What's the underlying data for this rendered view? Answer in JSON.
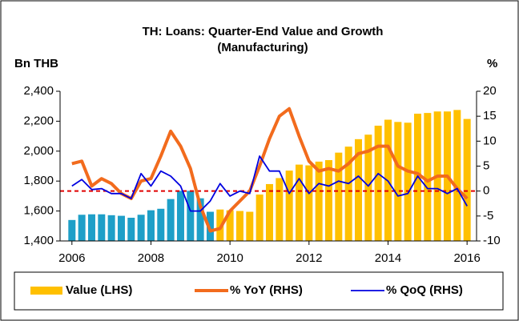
{
  "chart_data": {
    "type": "combo",
    "title": [
      "TH: Loans: Quarter-End Value and Growth",
      "(Manufacturing)"
    ],
    "y_label": "Bn THB",
    "y2_label": "%",
    "x": [
      2006,
      2006.25,
      2006.5,
      2006.75,
      2007,
      2007.25,
      2007.5,
      2007.75,
      2008,
      2008.25,
      2008.5,
      2008.75,
      2009,
      2009.25,
      2009.5,
      2009.75,
      2010,
      2010.25,
      2010.5,
      2010.75,
      2011,
      2011.25,
      2011.5,
      2011.75,
      2012,
      2012.25,
      2012.5,
      2012.75,
      2013,
      2013.25,
      2013.5,
      2013.75,
      2014,
      2014.25,
      2014.5,
      2014.75,
      2015,
      2015.25,
      2015.5,
      2015.75,
      2016
    ],
    "xlim": [
      2005.7,
      2016.24
    ],
    "xticks": [
      2006,
      2008,
      2010,
      2012,
      2014,
      2016
    ],
    "ylim": [
      1400,
      2400
    ],
    "yticks": [
      {
        "value": 1400,
        "label": "1,400"
      },
      {
        "value": 1600,
        "label": "1,600"
      },
      {
        "value": 1800,
        "label": "1,800"
      },
      {
        "value": 2000,
        "label": "2,000"
      },
      {
        "value": 2200,
        "label": "2,200"
      },
      {
        "value": 2400,
        "label": "2,400"
      }
    ],
    "y2lim": [
      -10,
      20
    ],
    "y2ticks": [
      -10,
      -5,
      0,
      5,
      10,
      15,
      20
    ],
    "reference_line": {
      "axis": "y2",
      "value": 0,
      "color": "#e00000"
    },
    "series": [
      {
        "name": "Value (LHS)",
        "type": "bar",
        "color": "#ffc000",
        "colors": [
          "#1e9fc8",
          "#1e9fc8",
          "#1e9fc8",
          "#1e9fc8",
          "#1e9fc8",
          "#1e9fc8",
          "#1e9fc8",
          "#1e9fc8",
          "#1e9fc8",
          "#1e9fc8",
          "#1e9fc8",
          "#1e9fc8",
          "#1e9fc8",
          "#1e9fc8",
          "#1e9fc8",
          "#ffc000",
          "#ffc000",
          "#ffc000",
          "#ffc000",
          "#ffc000",
          "#ffc000",
          "#ffc000",
          "#ffc000",
          "#ffc000",
          "#ffc000",
          "#ffc000",
          "#ffc000",
          "#ffc000",
          "#ffc000",
          "#ffc000",
          "#ffc000",
          "#ffc000",
          "#ffc000",
          "#ffc000",
          "#ffc000",
          "#ffc000",
          "#ffc000",
          "#ffc000",
          "#ffc000",
          "#ffc000",
          "#ffc000"
        ],
        "values": [
          1540,
          1575,
          1578,
          1578,
          1572,
          1568,
          1555,
          1575,
          1605,
          1615,
          1680,
          1735,
          1735,
          1685,
          1595,
          1610,
          1605,
          1600,
          1595,
          1710,
          1780,
          1820,
          1870,
          1910,
          1905,
          1930,
          1940,
          1990,
          2030,
          2080,
          2110,
          2170,
          2210,
          2195,
          2190,
          2250,
          2255,
          2265,
          2265,
          2275,
          2215
        ]
      },
      {
        "name": "% YoY (RHS)",
        "type": "line",
        "axis": "y2",
        "color": "#f26b1d",
        "width": 4,
        "values": [
          5.5,
          6,
          1,
          2.5,
          1.5,
          -0.5,
          -1.5,
          2,
          2.5,
          7,
          12,
          9,
          4.5,
          -3,
          -8,
          -7.5,
          -4,
          -2,
          0,
          5,
          10.5,
          15,
          16.5,
          11,
          6,
          4,
          4.5,
          4,
          5.5,
          7.5,
          8,
          9,
          9,
          5,
          4,
          3.5,
          2,
          3,
          3,
          0.5,
          -1.5
        ]
      },
      {
        "name": "% QoQ (RHS)",
        "type": "line",
        "axis": "y2",
        "color": "#0000e0",
        "width": 1.8,
        "values": [
          1,
          2.3,
          0.3,
          0.5,
          -0.5,
          -0.5,
          -1.5,
          3.5,
          1,
          4,
          3,
          1,
          -4,
          -4,
          -2,
          1.5,
          -1,
          0,
          -0.5,
          7,
          4,
          4,
          -0.5,
          2.5,
          -0.5,
          1.5,
          1,
          2,
          1.5,
          3,
          1,
          3.5,
          2,
          -1,
          -0.5,
          3,
          0.5,
          0.5,
          -0.5,
          0.5,
          -3
        ]
      }
    ]
  }
}
